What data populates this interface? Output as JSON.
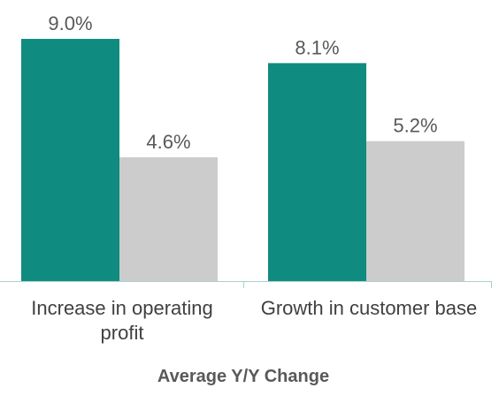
{
  "chart_data": {
    "type": "bar",
    "title": "",
    "xlabel": "Average Y/Y Change",
    "ylabel": "",
    "categories": [
      [
        "Increase in operating",
        "profit"
      ],
      [
        "Growth in customer base"
      ]
    ],
    "series": [
      {
        "color": "#0f8b80",
        "values": [
          9.0,
          8.1
        ],
        "labels": [
          "9.0%",
          "8.1%"
        ]
      },
      {
        "color": "#cccccc",
        "values": [
          4.6,
          5.2
        ],
        "labels": [
          "4.6%",
          "5.2%"
        ]
      }
    ],
    "ylim": [
      0,
      10
    ],
    "grid": false,
    "legend": "none",
    "axis_color": "#a6d1cd"
  }
}
